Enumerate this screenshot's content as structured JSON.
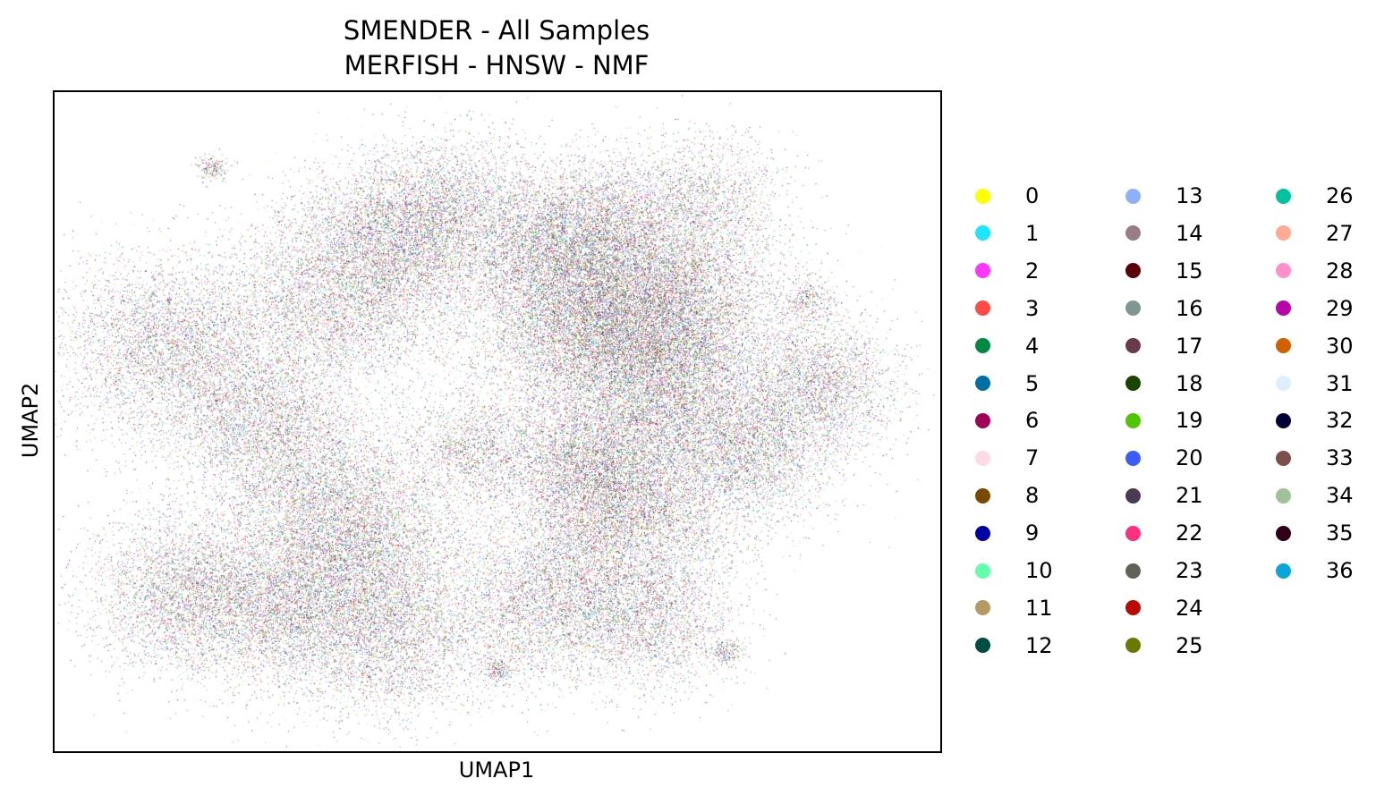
{
  "chart_data": {
    "type": "scatter",
    "title": "SMENDER - All Samples",
    "subtitle": "MERFISH - HNSW - NMF",
    "xlabel": "UMAP1",
    "ylabel": "UMAP2",
    "grid": false,
    "ticks_shown": false,
    "legend_placement": "right, outside plot, 3 columns",
    "categories": [
      "0",
      "1",
      "2",
      "3",
      "4",
      "5",
      "6",
      "7",
      "8",
      "9",
      "10",
      "11",
      "12",
      "13",
      "14",
      "15",
      "16",
      "17",
      "18",
      "19",
      "20",
      "21",
      "22",
      "23",
      "24",
      "25",
      "26",
      "27",
      "28",
      "29",
      "30",
      "31",
      "32",
      "33",
      "34",
      "35",
      "36"
    ],
    "colors": [
      "#ffff00",
      "#1ce6ff",
      "#ff34ff",
      "#ff4a46",
      "#008941",
      "#006fa6",
      "#a30059",
      "#ffdbe5",
      "#7a4900",
      "#0000a6",
      "#63ffac",
      "#b79762",
      "#004d43",
      "#8fb0ff",
      "#997d87",
      "#5a0007",
      "#809693",
      "#6a3a4c",
      "#1b4400",
      "#4fc601",
      "#3b5dff",
      "#4a3b53",
      "#ff2f80",
      "#61615a",
      "#ba0900",
      "#6b7900",
      "#00c2a0",
      "#ffaa92",
      "#ff90c9",
      "#b903aa",
      "#d16100",
      "#ddefff",
      "#000035",
      "#7b4f4b",
      "#a1c299",
      "#300018",
      "#0aa6d8"
    ],
    "clusters_umap": [
      {
        "x": 0.1,
        "y": 0.62,
        "spread": 0.07,
        "weight": 1.3
      },
      {
        "x": 0.2,
        "y": 0.5,
        "spread": 0.05,
        "weight": 0.6
      },
      {
        "x": 0.3,
        "y": 0.7,
        "spread": 0.07,
        "weight": 1.2
      },
      {
        "x": 0.38,
        "y": 0.8,
        "spread": 0.06,
        "weight": 1.2
      },
      {
        "x": 0.28,
        "y": 0.4,
        "spread": 0.07,
        "weight": 1.0
      },
      {
        "x": 0.33,
        "y": 0.28,
        "spread": 0.07,
        "weight": 1.4
      },
      {
        "x": 0.12,
        "y": 0.22,
        "spread": 0.06,
        "weight": 1.1
      },
      {
        "x": 0.24,
        "y": 0.18,
        "spread": 0.06,
        "weight": 0.8
      },
      {
        "x": 0.37,
        "y": 0.14,
        "spread": 0.06,
        "weight": 0.8
      },
      {
        "x": 0.55,
        "y": 0.78,
        "spread": 0.05,
        "weight": 0.6
      },
      {
        "x": 0.62,
        "y": 0.83,
        "spread": 0.05,
        "weight": 0.8
      },
      {
        "x": 0.6,
        "y": 0.66,
        "spread": 0.07,
        "weight": 1.8
      },
      {
        "x": 0.7,
        "y": 0.7,
        "spread": 0.07,
        "weight": 2.0
      },
      {
        "x": 0.71,
        "y": 0.56,
        "spread": 0.06,
        "weight": 1.2
      },
      {
        "x": 0.62,
        "y": 0.43,
        "spread": 0.06,
        "weight": 1.2
      },
      {
        "x": 0.66,
        "y": 0.34,
        "spread": 0.07,
        "weight": 1.4
      },
      {
        "x": 0.81,
        "y": 0.45,
        "spread": 0.05,
        "weight": 0.8
      },
      {
        "x": 0.89,
        "y": 0.56,
        "spread": 0.05,
        "weight": 0.8
      },
      {
        "x": 0.56,
        "y": 0.2,
        "spread": 0.06,
        "weight": 1.0
      },
      {
        "x": 0.69,
        "y": 0.17,
        "spread": 0.05,
        "weight": 0.6
      },
      {
        "x": 0.75,
        "y": 0.86,
        "spread": 0.05,
        "weight": 0.5
      },
      {
        "x": 0.47,
        "y": 0.46,
        "spread": 0.04,
        "weight": 0.4
      },
      {
        "x": 0.45,
        "y": 0.87,
        "spread": 0.05,
        "weight": 0.5
      },
      {
        "x": 0.15,
        "y": 0.92,
        "spread": 0.01,
        "weight": 0.05
      },
      {
        "x": 0.5,
        "y": 0.09,
        "spread": 0.01,
        "weight": 0.05
      },
      {
        "x": 0.78,
        "y": 0.12,
        "spread": 0.01,
        "weight": 0.05
      },
      {
        "x": 0.88,
        "y": 0.7,
        "spread": 0.02,
        "weight": 0.1
      }
    ]
  },
  "legend": {
    "labels": [
      "0",
      "1",
      "2",
      "3",
      "4",
      "5",
      "6",
      "7",
      "8",
      "9",
      "10",
      "11",
      "12",
      "13",
      "14",
      "15",
      "16",
      "17",
      "18",
      "19",
      "20",
      "21",
      "22",
      "23",
      "24",
      "25",
      "26",
      "27",
      "28",
      "29",
      "30",
      "31",
      "32",
      "33",
      "34",
      "35",
      "36"
    ],
    "columns": 3,
    "rows_per_column": 13
  }
}
